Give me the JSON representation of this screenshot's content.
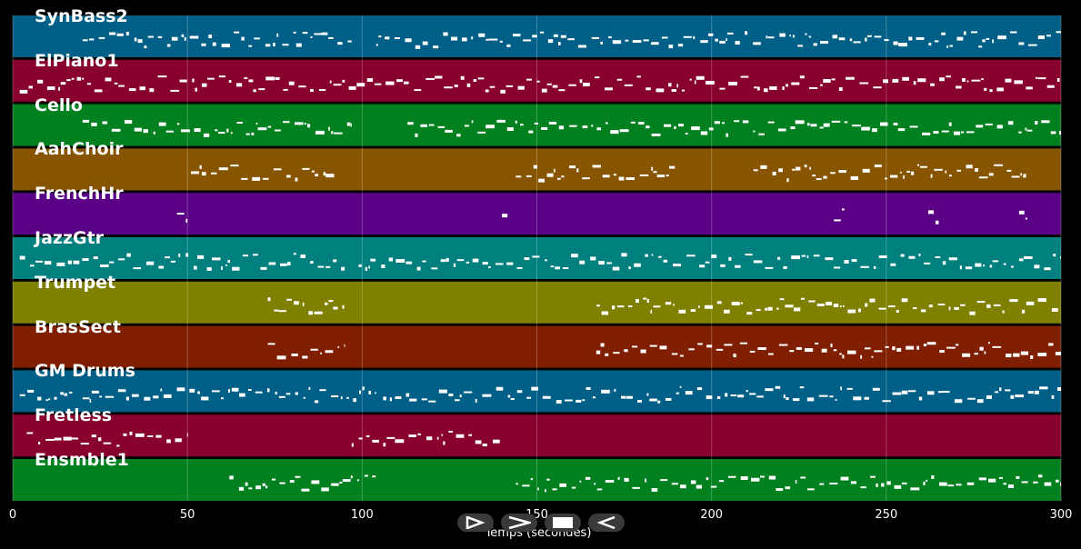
{
  "window": {
    "title": ""
  },
  "axis": {
    "xlabel": "Temps (secondes)",
    "xlim": [
      0,
      300
    ],
    "ticks": [
      "0",
      "50",
      "100",
      "150",
      "200",
      "250",
      "300"
    ]
  },
  "tracks": [
    {
      "name": "SynBass2",
      "color": "#005f87"
    },
    {
      "name": "ElPiano1",
      "color": "#87002f"
    },
    {
      "name": "Cello",
      "color": "#00801f"
    },
    {
      "name": "AahChoir",
      "color": "#875500"
    },
    {
      "name": "FrenchHr",
      "color": "#5a0087"
    },
    {
      "name": "JazzGtr",
      "color": "#007f7f"
    },
    {
      "name": "Trumpet",
      "color": "#7f7f00"
    },
    {
      "name": "BrasSect",
      "color": "#7f1f00"
    },
    {
      "name": "GM Drums",
      "color": "#005f87"
    },
    {
      "name": "Fretless",
      "color": "#87002f"
    },
    {
      "name": "Ensmble1",
      "color": "#00801f"
    }
  ],
  "controls": [
    {
      "name": "play-icon",
      "label": "play"
    },
    {
      "name": "forward-icon",
      "label": "forward"
    },
    {
      "name": "stop-icon",
      "label": "stop"
    },
    {
      "name": "rewind-icon",
      "label": "rewind"
    }
  ]
}
